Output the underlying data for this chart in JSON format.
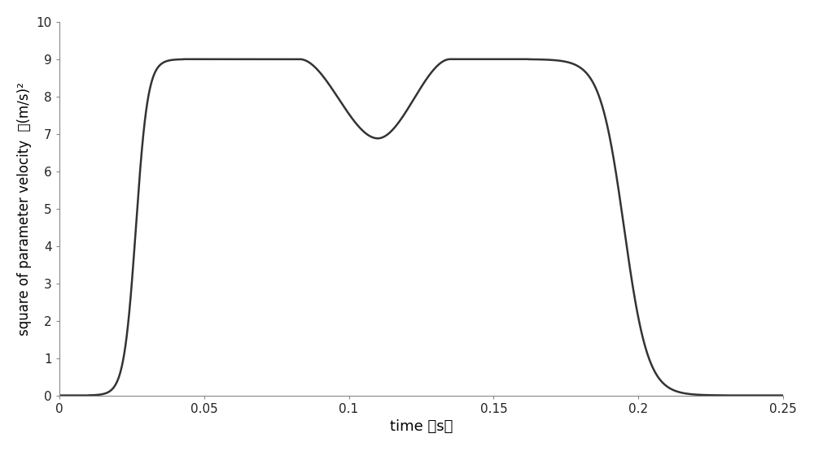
{
  "title": "",
  "xlabel": "time （s）",
  "ylabel": "square of parameter velocity  （(m/s)²",
  "xlim": [
    0,
    0.25
  ],
  "ylim": [
    0,
    10
  ],
  "xticks": [
    0,
    0.05,
    0.1,
    0.15,
    0.2,
    0.25
  ],
  "xtick_labels": [
    "0",
    "0.05",
    "0.1",
    "0.15",
    "0.2",
    "0.25"
  ],
  "yticks": [
    0,
    1,
    2,
    3,
    4,
    5,
    6,
    7,
    8,
    9,
    10
  ],
  "line_color": "#333333",
  "line_width": 1.8,
  "background_color": "#ffffff",
  "xlabel_fontsize": 13,
  "ylabel_fontsize": 12,
  "tick_fontsize": 11,
  "curve_params": {
    "rise1_start": 0.01,
    "rise1_end": 0.043,
    "plateau1_end": 0.083,
    "dip_start": 0.083,
    "dip_mid": 0.11,
    "dip_end": 0.135,
    "plateau2_end": 0.162,
    "fall_start": 0.162,
    "fall_end": 0.228,
    "peak_value": 9.0,
    "dip_value": 6.88,
    "rise_steepness": 8.0,
    "fall_steepness": 8.0
  }
}
